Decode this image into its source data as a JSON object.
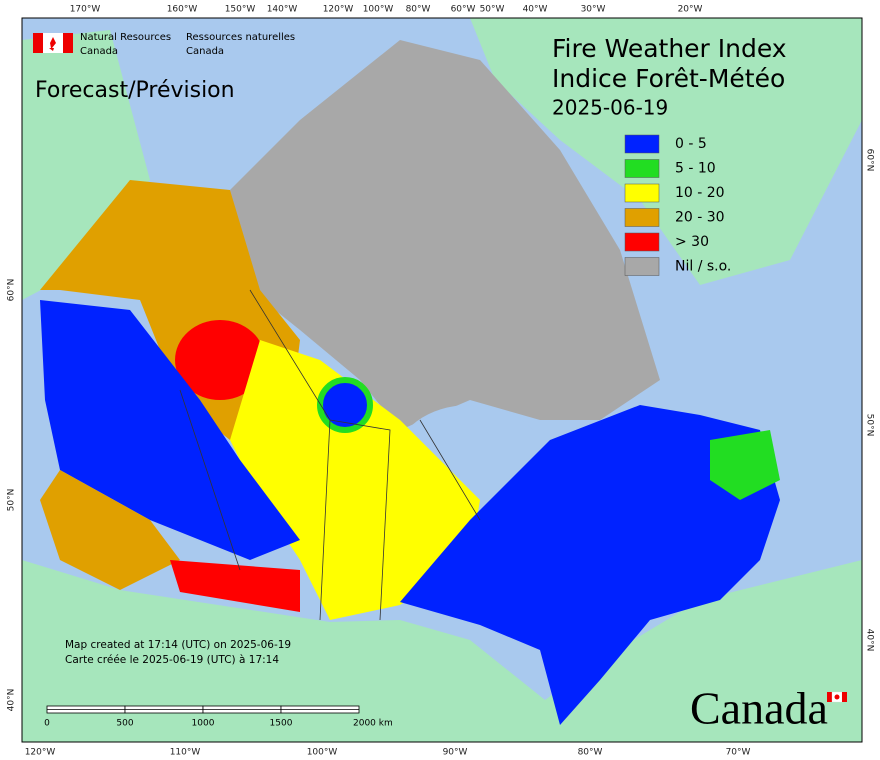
{
  "header": {
    "org_en": [
      "Natural Resources",
      "Canada"
    ],
    "org_fr": [
      "Ressources naturelles",
      "Canada"
    ]
  },
  "subtitle": "Forecast/Prévision",
  "title": [
    "Fire Weather Index",
    "Indice Forêt-Météo"
  ],
  "date": "2025-06-19",
  "legend": [
    {
      "label": "0 - 5",
      "color": "#0022ff"
    },
    {
      "label": "5 - 10",
      "color": "#22dd22"
    },
    {
      "label": "10 - 20",
      "color": "#ffff00"
    },
    {
      "label": "20 - 30",
      "color": "#e0a000"
    },
    {
      "label": "> 30",
      "color": "#ff0000"
    },
    {
      "label": "Nil / s.o.",
      "color": "#a8a8a8"
    }
  ],
  "graticule": {
    "top": [
      "170°W",
      "160°W",
      "150°W",
      "140°W",
      "120°W",
      "100°W",
      "80°W",
      "60°W",
      "50°W",
      "40°W",
      "30°W",
      "20°W"
    ],
    "bottom": [
      "120°W",
      "110°W",
      "100°W",
      "90°W",
      "80°W",
      "70°W"
    ],
    "left": [
      "60°N",
      "50°N",
      "40°N"
    ],
    "right": [
      "60°N",
      "50°N",
      "40°N"
    ]
  },
  "scale": [
    "0",
    "500",
    "1000",
    "1500",
    "2000 km"
  ],
  "notes": [
    "Map created at 17:14 (UTC) on 2025-06-19",
    "Carte créée le 2025-06-19 (UTC) à 17:14"
  ],
  "wordmark": "Canada"
}
